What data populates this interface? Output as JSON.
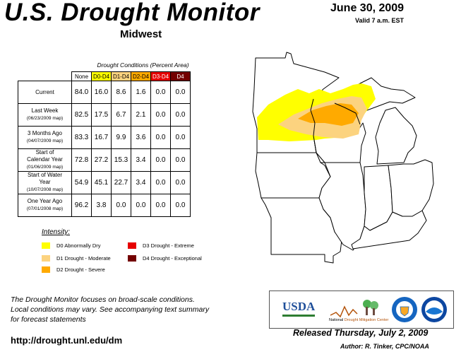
{
  "header": {
    "title": "U.S. Drought Monitor",
    "region": "Midwest",
    "date": "June 30, 2009",
    "valid": "Valid 7 a.m. EST"
  },
  "table": {
    "caption": "Drought Conditions (Percent Area)",
    "columns": [
      {
        "label": "None",
        "color": "#ffffff",
        "text_color": "#000000"
      },
      {
        "label": "D0-D4",
        "color": "#ffff00",
        "text_color": "#000000"
      },
      {
        "label": "D1-D4",
        "color": "#fcd37f",
        "text_color": "#000000"
      },
      {
        "label": "D2-D4",
        "color": "#ffaa00",
        "text_color": "#000000"
      },
      {
        "label": "D3-D4",
        "color": "#e60000",
        "text_color": "#ffffff"
      },
      {
        "label": "D4",
        "color": "#730000",
        "text_color": "#ffffff"
      }
    ],
    "rows": [
      {
        "label": "Current",
        "sub": "",
        "values": [
          "84.0",
          "16.0",
          "8.6",
          "1.6",
          "0.0",
          "0.0"
        ]
      },
      {
        "label": "Last Week",
        "sub": "(06/23/2009 map)",
        "values": [
          "82.5",
          "17.5",
          "6.7",
          "2.1",
          "0.0",
          "0.0"
        ]
      },
      {
        "label": "3 Months Ago",
        "sub": "(04/07/2009 map)",
        "values": [
          "83.3",
          "16.7",
          "9.9",
          "3.6",
          "0.0",
          "0.0"
        ]
      },
      {
        "label": "Start of Calendar Year",
        "sub": "(01/06/2009 map)",
        "values": [
          "72.8",
          "27.2",
          "15.3",
          "3.4",
          "0.0",
          "0.0"
        ]
      },
      {
        "label": "Start of Water Year",
        "sub": "(10/07/2008 map)",
        "values": [
          "54.9",
          "45.1",
          "22.7",
          "3.4",
          "0.0",
          "0.0"
        ]
      },
      {
        "label": "One Year Ago",
        "sub": "(07/01/2008 map)",
        "values": [
          "96.2",
          "3.8",
          "0.0",
          "0.0",
          "0.0",
          "0.0"
        ]
      }
    ]
  },
  "legend": {
    "title": "Intensity:",
    "items": [
      {
        "label": "D0 Abnormally Dry",
        "color": "#ffff00"
      },
      {
        "label": "D1 Drought - Moderate",
        "color": "#fcd37f"
      },
      {
        "label": "D2 Drought - Severe",
        "color": "#ffaa00"
      },
      {
        "label": "D3 Drought - Extreme",
        "color": "#e60000"
      },
      {
        "label": "D4 Drought - Exceptional",
        "color": "#730000"
      }
    ]
  },
  "footer": {
    "note_line1": "The Drought Monitor focuses on broad-scale conditions.",
    "note_line2": "Local conditions may vary. See accompanying text summary",
    "note_line3": "for forecast statements",
    "url": "http://drought.unl.edu/dm",
    "released": "Released Thursday, July 2, 2009",
    "author": "Author: R. Tinker, CPC/NOAA"
  },
  "logos": {
    "usda": "USDA",
    "ndmc_line1": "National",
    "ndmc_line2": "Drought Mitigation Center"
  },
  "map": {
    "colors": {
      "d0": "#ffff00",
      "d1": "#fcd37f",
      "d2": "#ffaa00",
      "land": "#ffffff",
      "border": "#000000"
    }
  }
}
